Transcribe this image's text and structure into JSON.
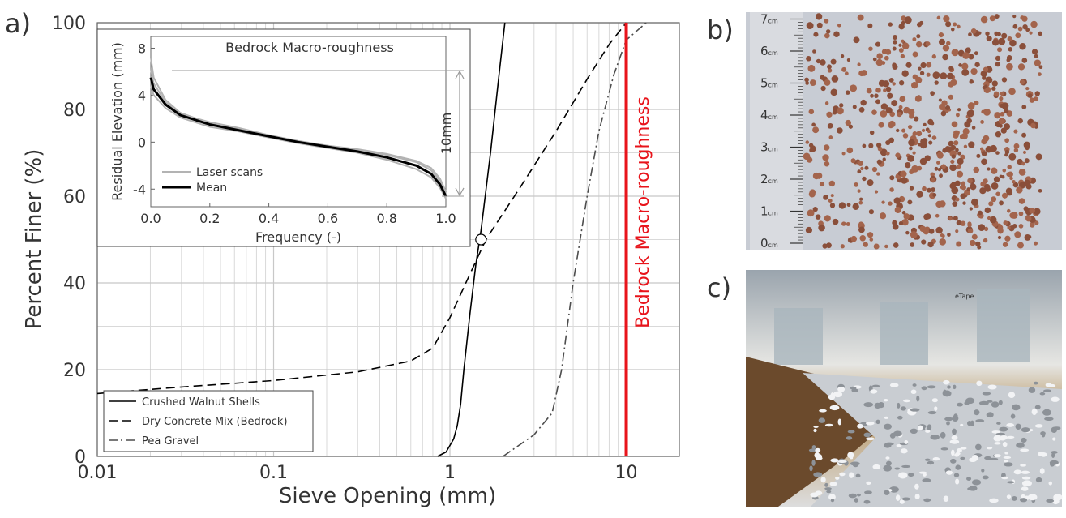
{
  "chart_data": [
    {
      "type": "line",
      "panel_label": "a)",
      "xlabel": "Sieve Opening (mm)",
      "ylabel": "Percent Finer (%)",
      "xscale": "log",
      "xlim": [
        0.01,
        20
      ],
      "ylim": [
        0,
        100
      ],
      "xticks": [
        0.01,
        0.1,
        1,
        10
      ],
      "yticks": [
        0,
        20,
        40,
        60,
        80,
        100
      ],
      "xminorticks": [
        0.02,
        0.03,
        0.04,
        0.05,
        0.06,
        0.07,
        0.08,
        0.09,
        0.2,
        0.3,
        0.4,
        0.5,
        0.6,
        0.7,
        0.8,
        0.9,
        2,
        3,
        4,
        5,
        6,
        7,
        8,
        9
      ],
      "yminorticks": [
        10,
        30,
        50,
        70,
        90
      ],
      "grid": true,
      "legend": "lower left",
      "series": [
        {
          "name": "Crushed Walnut Shells",
          "color": "#000000",
          "dash": "solid",
          "x": [
            0.85,
            0.95,
            1.05,
            1.1,
            1.15,
            1.2,
            1.3,
            1.4,
            1.5,
            1.7,
            1.9,
            2.05
          ],
          "values": [
            0,
            1,
            4,
            7,
            12,
            20,
            33,
            44,
            52,
            70,
            88,
            100
          ]
        },
        {
          "name": "Dry Concrete Mix (Bedrock)",
          "color": "#000000",
          "dash": "dashed",
          "x": [
            0.01,
            0.03,
            0.1,
            0.3,
            0.6,
            0.8,
            1,
            1.2,
            1.6,
            2.5,
            4,
            6,
            8,
            10
          ],
          "values": [
            14.5,
            16,
            17.5,
            19.5,
            22,
            25,
            32,
            39,
            50,
            62,
            75,
            87,
            95,
            100
          ]
        },
        {
          "name": "Pea Gravel",
          "color": "#4d4d4d",
          "dash": "dashdot",
          "x": [
            2,
            3,
            3.8,
            4.3,
            5,
            6,
            7,
            8.5,
            10,
            13
          ],
          "values": [
            0,
            5,
            10,
            20,
            40,
            60,
            75,
            88,
            96,
            100
          ]
        }
      ],
      "marker": {
        "x": 1.5,
        "y": 50
      },
      "reference_line": {
        "x": 10,
        "label": "Bedrock Macro-roughness",
        "color": "#e8141b"
      }
    },
    {
      "type": "line",
      "title": "Bedrock Macro-roughness",
      "xlabel": "Frequency (-)",
      "ylabel": "Residual Elevation (mm)",
      "xlim": [
        0,
        1
      ],
      "ylim": [
        -5.5,
        9
      ],
      "xticks": [
        {
          "value": 0,
          "label": "0.0"
        },
        {
          "value": 0.2,
          "label": "0.2"
        },
        {
          "value": 0.4,
          "label": "0.4"
        },
        {
          "value": 0.6,
          "label": "0.6"
        },
        {
          "value": 0.8,
          "label": "0.8"
        },
        {
          "value": 1,
          "label": "1.0"
        }
      ],
      "yticks": [
        -4,
        0,
        4,
        8
      ],
      "legend": "lower left",
      "x": [
        0,
        0.01,
        0.05,
        0.1,
        0.2,
        0.3,
        0.4,
        0.5,
        0.6,
        0.7,
        0.8,
        0.9,
        0.95,
        0.98,
        1.0
      ],
      "series": [
        {
          "name": "Laser scans",
          "color": "#b3b3b3",
          "values": [
            [
              7.2,
              5.5,
              3.6,
              2.5,
              1.6,
              1.1,
              0.6,
              0.1,
              -0.3,
              -0.7,
              -1.1,
              -1.7,
              -2.4,
              -3.3,
              -4.4
            ],
            [
              4.8,
              4.0,
              2.9,
              2.1,
              1.3,
              0.9,
              0.4,
              -0.1,
              -0.5,
              -0.9,
              -1.5,
              -2.3,
              -3.0,
              -3.9,
              -4.8
            ],
            [
              6.2,
              5.0,
              3.4,
              2.4,
              1.7,
              1.2,
              0.6,
              0.0,
              -0.3,
              -0.6,
              -1.0,
              -1.6,
              -2.2,
              -3.1,
              -4.2
            ]
          ]
        },
        {
          "name": "Mean",
          "color": "#000000",
          "values": [
            5.5,
            4.5,
            3.2,
            2.3,
            1.5,
            1.0,
            0.5,
            0,
            -0.4,
            -0.8,
            -1.3,
            -2.0,
            -2.7,
            -3.6,
            -4.6
          ]
        }
      ],
      "annotation": {
        "label": "10mm",
        "y": [
          6.1,
          -4.6
        ]
      }
    }
  ],
  "photos": [
    {
      "label": "b)",
      "ruler_labels": [
        "0",
        "1",
        "2",
        "3",
        "4",
        "5",
        "6",
        "7"
      ],
      "ruler_unit": "cm"
    },
    {
      "label": "c)",
      "tag": "eTape"
    }
  ]
}
